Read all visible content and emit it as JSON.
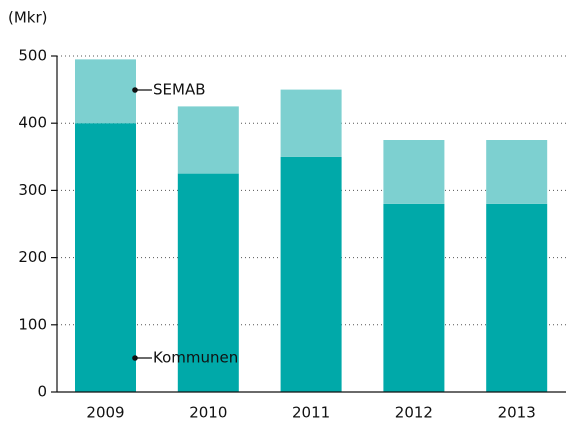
{
  "chart_data": {
    "type": "stacked_bar",
    "y_label": "(Mkr)",
    "categories": [
      "2009",
      "2010",
      "2011",
      "2012",
      "2013"
    ],
    "series": [
      {
        "name": "Kommunen",
        "color": "#00a9a9",
        "values": [
          400,
          325,
          350,
          280,
          280
        ]
      },
      {
        "name": "SEMAB",
        "color": "#7dd0d0",
        "values": [
          95,
          100,
          100,
          95,
          95
        ]
      }
    ],
    "ylim": [
      0,
      500
    ],
    "yticks": [
      0,
      100,
      200,
      300,
      400,
      500
    ],
    "grid": true
  }
}
